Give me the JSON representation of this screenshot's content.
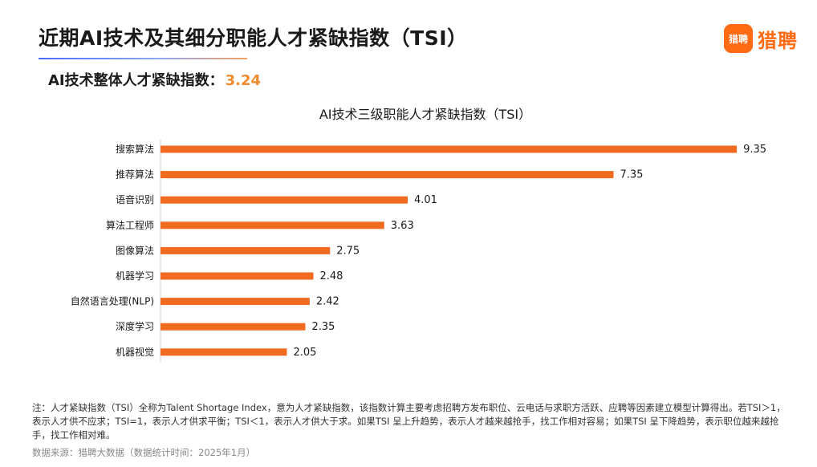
{
  "header": {
    "title": "近期AI技术及其细分职能人才紧缺指数（TSI）",
    "overall_label": "AI技术整体人才紧缺指数：",
    "overall_value": "3.24"
  },
  "logo": {
    "badge": "猎聘",
    "text": "猎聘"
  },
  "colors": {
    "bar": "#f06a1f",
    "accent_value": "#f08a2e",
    "logo": "#ff6a13"
  },
  "chart_data": {
    "type": "bar",
    "orientation": "horizontal",
    "title": "AI技术三级职能人才紧缺指数（TSI）",
    "categories": [
      "搜索算法",
      "推荐算法",
      "语音识别",
      "算法工程师",
      "图像算法",
      "机器学习",
      "自然语言处理(NLP)",
      "深度学习",
      "机器视觉"
    ],
    "values": [
      9.35,
      7.35,
      4.01,
      3.63,
      2.75,
      2.48,
      2.42,
      2.35,
      2.05
    ],
    "value_labels": [
      "9.35",
      "7.35",
      "4.01",
      "3.63",
      "2.75",
      "2.48",
      "2.42",
      "2.35",
      "2.05"
    ],
    "xlabel": "",
    "ylabel": "",
    "xlim": [
      0,
      10
    ],
    "grid": false,
    "legend": "none"
  },
  "footer": {
    "note": "注：人才紧缺指数（TSI）全称为Talent Shortage Index，意为人才紧缺指数，该指数计算主要考虑招聘方发布职位、云电话与求职方活跃、应聘等因素建立模型计算得出。若TSI＞1，表示人才供不应求；TSI=1，表示人才供求平衡；TSI＜1，表示人才供大于求。如果TSI 呈上升趋势，表示人才越来越抢手，找工作相对容易；如果TSI 呈下降趋势，表示职位越来越抢手，找工作相对难。",
    "source": "数据来源：猎聘大数据（数据统计时间：2025年1月）"
  }
}
